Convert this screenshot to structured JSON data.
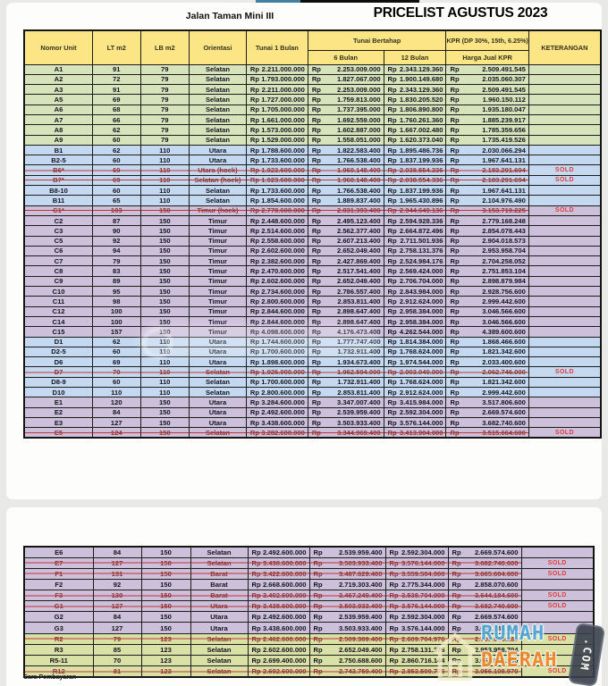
{
  "page": {
    "title_left": "Jalan Taman Mini III",
    "title_right": "PRICELIST AGUSTUS 2023",
    "footer_note": "Cara Pembayaran"
  },
  "table": {
    "headers": {
      "nomor_unit": "Nomor Unit",
      "lt": "LT m2",
      "lb": "LB m2",
      "orientasi": "Orientasi",
      "tunai_1_bulan": "Tunai 1 Bulan",
      "tunai_bertahap": "Tunai Bertahap",
      "bulan6": "6 Bulan",
      "bulan12": "12 Bulan",
      "kpr": "KPR (DP 30%, 15th, 6.25%)",
      "harga_jual_kpr": "Harga Jual KPR",
      "keterangan": "KETERANGAN",
      "currency": "Rp",
      "sold_label": "SOLD"
    },
    "colors": {
      "header_yellow": "#fce584",
      "green": "#d7e4bb",
      "blue": "#c4d8f0",
      "purple": "#cdc0db",
      "green2": "#d9e1a7",
      "sold_red": "#e03a3a",
      "strike_red": "#bf3434",
      "logo_blue": "#49a8d9",
      "logo_orange": "#f28422",
      "badge_dark": "#3a414d"
    },
    "rows_page1": [
      {
        "unit": "A1",
        "lt": "91",
        "lb": "79",
        "or": "Selatan",
        "tunai": "2.211.000.000",
        "b6": "2.253.009.000",
        "b12": "2.343.129.360",
        "kpr": "2.509.491.545",
        "ket": "",
        "color": "green",
        "sold": false
      },
      {
        "unit": "A2",
        "lt": "72",
        "lb": "79",
        "or": "Selatan",
        "tunai": "1.793.000.000",
        "b6": "1.827.067.000",
        "b12": "1.900.149.680",
        "kpr": "2.035.060.307",
        "ket": "",
        "color": "green",
        "sold": false
      },
      {
        "unit": "A3",
        "lt": "91",
        "lb": "79",
        "or": "Selatan",
        "tunai": "2.211.000.000",
        "b6": "2.253.009.000",
        "b12": "2.343.129.360",
        "kpr": "2.509.491.545",
        "ket": "",
        "color": "green",
        "sold": false
      },
      {
        "unit": "A5",
        "lt": "69",
        "lb": "79",
        "or": "Selatan",
        "tunai": "1.727.000.000",
        "b6": "1.759.813.000",
        "b12": "1.830.205.520",
        "kpr": "1.960.150.112",
        "ket": "",
        "color": "green",
        "sold": false
      },
      {
        "unit": "A6",
        "lt": "68",
        "lb": "79",
        "or": "Selatan",
        "tunai": "1.705.000.000",
        "b6": "1.737.395.000",
        "b12": "1.806.890.800",
        "kpr": "1.935.180.047",
        "ket": "",
        "color": "green",
        "sold": false
      },
      {
        "unit": "A7",
        "lt": "66",
        "lb": "79",
        "or": "Selatan",
        "tunai": "1.661.000.000",
        "b6": "1.692.559.000",
        "b12": "1.760.261.360",
        "kpr": "1.885.239.917",
        "ket": "",
        "color": "green",
        "sold": false
      },
      {
        "unit": "A8",
        "lt": "62",
        "lb": "79",
        "or": "Selatan",
        "tunai": "1.573.000.000",
        "b6": "1.602.887.000",
        "b12": "1.667.002.480",
        "kpr": "1.785.359.656",
        "ket": "",
        "color": "green",
        "sold": false
      },
      {
        "unit": "A9",
        "lt": "60",
        "lb": "79",
        "or": "Selatan",
        "tunai": "1.529.000.000",
        "b6": "1.558.051.000",
        "b12": "1.620.373.040",
        "kpr": "1.735.419.526",
        "ket": "",
        "color": "green",
        "sold": false
      },
      {
        "unit": "B1",
        "lt": "62",
        "lb": "110",
        "or": "Utara",
        "tunai": "1.788.600.000",
        "b6": "1.822.583.400",
        "b12": "1.895.486.736",
        "kpr": "2.030.066.294",
        "ket": "",
        "color": "blue",
        "sold": false
      },
      {
        "unit": "B2-5",
        "lt": "60",
        "lb": "110",
        "or": "Utara",
        "tunai": "1.733.600.000",
        "b6": "1.766.538.400",
        "b12": "1.837.199.936",
        "kpr": "1.967.641.131",
        "ket": "",
        "color": "blue",
        "sold": false
      },
      {
        "unit": "B6*",
        "lt": "69",
        "lb": "110",
        "or": "Utara (hoek)",
        "tunai": "1.923.600.000",
        "b6": "1.960.148.400",
        "b12": "2.038.554.336",
        "kpr": "2.183.291.694",
        "ket": "SOLD",
        "color": "blue",
        "sold": true
      },
      {
        "unit": "B7*",
        "lt": "69",
        "lb": "110",
        "or": "Selatan (hoek)",
        "tunai": "1.923.600.000",
        "b6": "1.960.148.400",
        "b12": "2.038.554.336",
        "kpr": "2.183.291.694",
        "ket": "SOLD",
        "color": "blue",
        "sold": true
      },
      {
        "unit": "B8-10",
        "lt": "60",
        "lb": "110",
        "or": "Selatan",
        "tunai": "1.733.600.000",
        "b6": "1.766.538.400",
        "b12": "1.837.199.936",
        "kpr": "1.967.641.131",
        "ket": "",
        "color": "blue",
        "sold": false
      },
      {
        "unit": "B11",
        "lt": "65",
        "lb": "110",
        "or": "Selatan",
        "tunai": "1.854.600.000",
        "b6": "1.889.837.400",
        "b12": "1.965.430.896",
        "kpr": "2.104.976.490",
        "ket": "",
        "color": "blue",
        "sold": false
      },
      {
        "unit": "C1*",
        "lt": "103",
        "lb": "150",
        "or": "Timur (hoek)",
        "tunai": "2.778.600.000",
        "b6": "2.831.393.400",
        "b12": "2.944.649.136",
        "kpr": "3.153.719.225",
        "ket": "SOLD",
        "color": "purple",
        "sold": true
      },
      {
        "unit": "C2",
        "lt": "87",
        "lb": "150",
        "or": "Timur",
        "tunai": "2.448.600.000",
        "b6": "2.495.123.400",
        "b12": "2.594.928.336",
        "kpr": "2.779.168.248",
        "ket": "",
        "color": "purple",
        "sold": false
      },
      {
        "unit": "C3",
        "lt": "90",
        "lb": "150",
        "or": "Timur",
        "tunai": "2.514.600.000",
        "b6": "2.562.377.400",
        "b12": "2.664.872.496",
        "kpr": "2.854.078.443",
        "ket": "",
        "color": "purple",
        "sold": false
      },
      {
        "unit": "C5",
        "lt": "92",
        "lb": "150",
        "or": "Timur",
        "tunai": "2.558.600.000",
        "b6": "2.607.213.400",
        "b12": "2.711.501.936",
        "kpr": "2.904.018.573",
        "ket": "",
        "color": "purple",
        "sold": false
      },
      {
        "unit": "C6",
        "lt": "94",
        "lb": "150",
        "or": "Timur",
        "tunai": "2.602.600.000",
        "b6": "2.652.049.400",
        "b12": "2.758.131.376",
        "kpr": "2.953.958.704",
        "ket": "",
        "color": "purple",
        "sold": false
      },
      {
        "unit": "C7",
        "lt": "79",
        "lb": "150",
        "or": "Timur",
        "tunai": "2.382.600.000",
        "b6": "2.427.869.400",
        "b12": "2.524.984.176",
        "kpr": "2.704.258.052",
        "ket": "",
        "color": "purple",
        "sold": false
      },
      {
        "unit": "C8",
        "lt": "83",
        "lb": "150",
        "or": "Timur",
        "tunai": "2.470.600.000",
        "b6": "2.517.541.400",
        "b12": "2.569.424.000",
        "kpr": "2.751.853.104",
        "ket": "",
        "color": "purple",
        "sold": false
      },
      {
        "unit": "C9",
        "lt": "89",
        "lb": "150",
        "or": "Timur",
        "tunai": "2.602.600.000",
        "b6": "2.652.049.400",
        "b12": "2.706.704.000",
        "kpr": "2.898.879.984",
        "ket": "",
        "color": "purple",
        "sold": false
      },
      {
        "unit": "C10",
        "lt": "95",
        "lb": "150",
        "or": "Timur",
        "tunai": "2.734.600.000",
        "b6": "2.786.557.400",
        "b12": "2.843.984.000",
        "kpr": "2.928.756.600",
        "ket": "",
        "color": "purple",
        "sold": false
      },
      {
        "unit": "C11",
        "lt": "98",
        "lb": "150",
        "or": "Timur",
        "tunai": "2.800.600.000",
        "b6": "2.853.811.400",
        "b12": "2.912.624.000",
        "kpr": "2.999.442.600",
        "ket": "",
        "color": "purple",
        "sold": false
      },
      {
        "unit": "C12",
        "lt": "100",
        "lb": "150",
        "or": "Timur",
        "tunai": "2.844.600.000",
        "b6": "2.898.647.400",
        "b12": "2.958.384.000",
        "kpr": "3.046.566.600",
        "ket": "",
        "color": "purple",
        "sold": false
      },
      {
        "unit": "C14",
        "lt": "100",
        "lb": "150",
        "or": "Timur",
        "tunai": "2.844.600.000",
        "b6": "2.898.647.400",
        "b12": "2.958.384.000",
        "kpr": "3.046.566.600",
        "ket": "",
        "color": "purple",
        "sold": false
      },
      {
        "unit": "C15",
        "lt": "157",
        "lb": "150",
        "or": "Timur",
        "tunai": "4.098.600.000",
        "b6": "4.176.473.400",
        "b12": "4.262.544.000",
        "kpr": "4.389.600.600",
        "ket": "",
        "color": "purple",
        "sold": false
      },
      {
        "unit": "D1",
        "lt": "62",
        "lb": "110",
        "or": "Utara",
        "tunai": "1.744.600.000",
        "b6": "1.777.747.400",
        "b12": "1.814.384.000",
        "kpr": "1.868.466.600",
        "ket": "",
        "color": "blue",
        "sold": false
      },
      {
        "unit": "D2-5",
        "lt": "60",
        "lb": "110",
        "or": "Utara",
        "tunai": "1.700.600.000",
        "b6": "1.732.911.400",
        "b12": "1.768.624.000",
        "kpr": "1.821.342.600",
        "ket": "",
        "color": "blue",
        "sold": false
      },
      {
        "unit": "D6",
        "lt": "69",
        "lb": "110",
        "or": "Utara",
        "tunai": "1.898.600.000",
        "b6": "1.934.673.400",
        "b12": "1.974.544.000",
        "kpr": "2.033.400.600",
        "ket": "",
        "color": "blue",
        "sold": false
      },
      {
        "unit": "D7",
        "lt": "70",
        "lb": "110",
        "or": "Selatan",
        "tunai": "1.926.000.000",
        "b6": "1.962.594.000",
        "b12": "2.003.040.000",
        "kpr": "2.062.746.000",
        "ket": "SOLD",
        "color": "blue",
        "sold": true
      },
      {
        "unit": "D8-9",
        "lt": "60",
        "lb": "110",
        "or": "Selatan",
        "tunai": "1.700.600.000",
        "b6": "1.732.911.400",
        "b12": "1.768.624.000",
        "kpr": "1.821.342.600",
        "ket": "",
        "color": "blue",
        "sold": false
      },
      {
        "unit": "D10",
        "lt": "110",
        "lb": "110",
        "or": "Selatan",
        "tunai": "2.800.600.000",
        "b6": "2.853.811.400",
        "b12": "2.912.624.000",
        "kpr": "2.999.442.600",
        "ket": "",
        "color": "blue",
        "sold": false
      },
      {
        "unit": "E1",
        "lt": "120",
        "lb": "150",
        "or": "Utara",
        "tunai": "3.284.600.000",
        "b6": "3.347.007.400",
        "b12": "3.415.984.000",
        "kpr": "3.517.806.600",
        "ket": "",
        "color": "purple",
        "sold": false
      },
      {
        "unit": "E2",
        "lt": "84",
        "lb": "150",
        "or": "Utara",
        "tunai": "2.492.600.000",
        "b6": "2.539.959.400",
        "b12": "2.592.304.000",
        "kpr": "2.669.574.600",
        "ket": "",
        "color": "purple",
        "sold": false
      },
      {
        "unit": "E3",
        "lt": "127",
        "lb": "150",
        "or": "Utara",
        "tunai": "3.438.600.000",
        "b6": "3.503.933.400",
        "b12": "3.576.144.000",
        "kpr": "3.682.740.600",
        "ket": "",
        "color": "purple",
        "sold": false
      },
      {
        "unit": "E5",
        "lt": "124",
        "lb": "150",
        "or": "Selatan",
        "tunai": "3.282.600.000",
        "b6": "3.344.969.400",
        "b12": "3.413.904.000",
        "kpr": "3.515.664.600",
        "ket": "SOLD",
        "color": "purple",
        "sold": true
      }
    ],
    "rows_page2": [
      {
        "unit": "E6",
        "lt": "84",
        "lb": "150",
        "or": "Selatan",
        "tunai": "2.492.600.000",
        "b6": "2.539.959.400",
        "b12": "2.592.304.000",
        "kpr": "2.669.574.600",
        "ket": "",
        "color": "purple",
        "sold": false
      },
      {
        "unit": "E7",
        "lt": "127",
        "lb": "150",
        "or": "Selatan",
        "tunai": "3.438.600.000",
        "b6": "3.503.933.400",
        "b12": "3.576.144.000",
        "kpr": "3.682.740.600",
        "ket": "SOLD",
        "color": "purple",
        "sold": true
      },
      {
        "unit": "F1",
        "lt": "131",
        "lb": "150",
        "or": "Barat",
        "tunai": "3.422.600.000",
        "b6": "3.487.629.400",
        "b12": "3.559.504.000",
        "kpr": "3.665.604.600",
        "ket": "SOLD",
        "color": "purple",
        "sold": true
      },
      {
        "unit": "F2",
        "lt": "92",
        "lb": "150",
        "or": "Barat",
        "tunai": "2.668.600.000",
        "b6": "2.719.303.400",
        "b12": "2.775.344.000",
        "kpr": "2.858.070.600",
        "ket": "",
        "color": "purple",
        "sold": false
      },
      {
        "unit": "F3",
        "lt": "130",
        "lb": "150",
        "or": "Barat",
        "tunai": "3.402.600.000",
        "b6": "3.467.249.400",
        "b12": "3.538.704.000",
        "kpr": "3.644.184.600",
        "ket": "SOLD",
        "color": "purple",
        "sold": true
      },
      {
        "unit": "G1",
        "lt": "127",
        "lb": "150",
        "or": "Utara",
        "tunai": "3.438.600.000",
        "b6": "3.503.933.400",
        "b12": "3.576.144.000",
        "kpr": "3.682.740.600",
        "ket": "SOLD",
        "color": "purple",
        "sold": true
      },
      {
        "unit": "G2",
        "lt": "84",
        "lb": "150",
        "or": "Utara",
        "tunai": "2.492.600.000",
        "b6": "2.539.959.400",
        "b12": "2.592.304.000",
        "kpr": "2.669.574.600",
        "ket": "",
        "color": "purple",
        "sold": false
      },
      {
        "unit": "G3",
        "lt": "127",
        "lb": "150",
        "or": "Utara",
        "tunai": "3.438.600.000",
        "b6": "3.503.933.400",
        "b12": "3.576.144.000",
        "kpr": "3.682.740.600",
        "ket": "",
        "color": "purple",
        "sold": false
      },
      {
        "unit": "R2",
        "lt": "79",
        "lb": "123",
        "or": "Selatan",
        "tunai": "2.462.600.000",
        "b6": "2.509.389.400",
        "b12": "2.609.764.976",
        "kpr": "2.795.058.289",
        "ket": "SOLD",
        "color": "green2",
        "sold": true
      },
      {
        "unit": "R3",
        "lt": "85",
        "lb": "123",
        "or": "Selatan",
        "tunai": "2.602.600.000",
        "b6": "2.652.049.400",
        "b12": "2.758.131.376",
        "kpr": "2.953.958.704",
        "ket": "",
        "color": "green2",
        "sold": false
      },
      {
        "unit": "R5-11",
        "lt": "70",
        "lb": "123",
        "or": "Selatan",
        "tunai": "2.699.400.000",
        "b6": "2.750.688.600",
        "b12": "2.860.716.144",
        "kpr": "3.063.826.990",
        "ket": "",
        "color": "green2",
        "sold": false
      },
      {
        "unit": "R12",
        "lt": "81",
        "lb": "123",
        "or": "Selatan",
        "tunai": "2.692.600.000",
        "b6": "2.743.759.400",
        "b12": "2.853.509.776",
        "kpr": "3.056.108.970",
        "ket": "SOLD",
        "color": "green2",
        "sold": true
      }
    ]
  },
  "brand_watermark": {
    "word1": "RUMAH",
    "word2": "DAERAH",
    "badge": ".COM"
  }
}
